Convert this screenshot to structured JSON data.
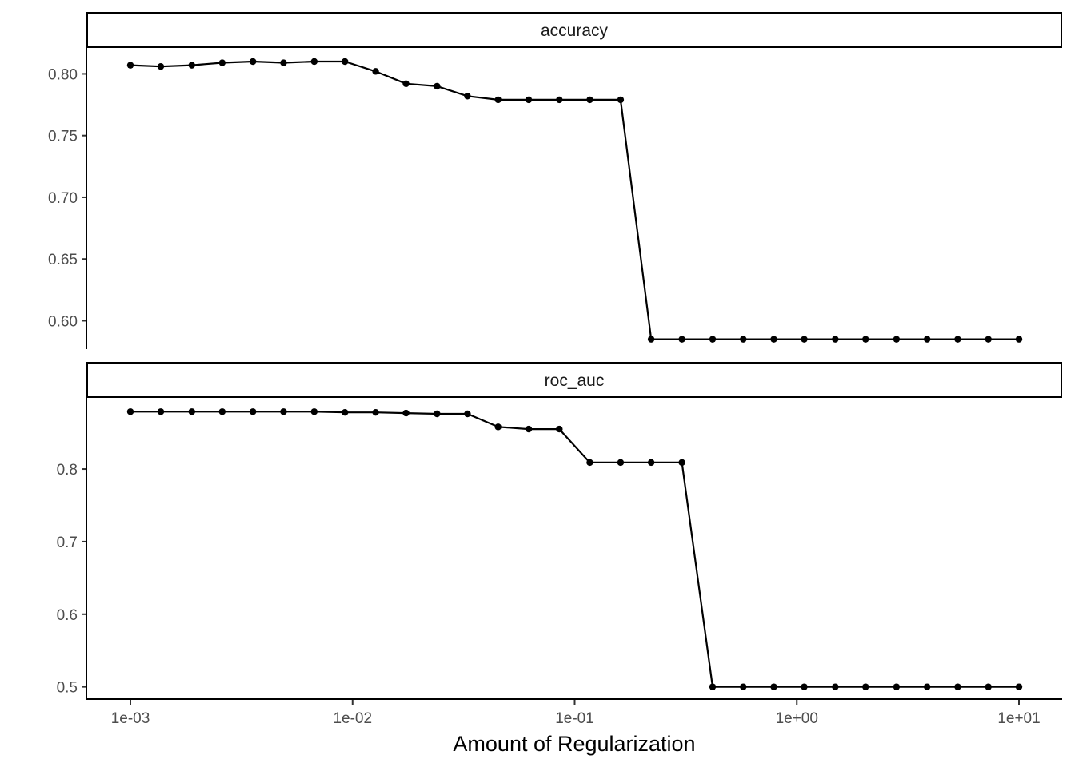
{
  "chart_data": {
    "type": "line",
    "xlabel": "Amount of Regularization",
    "xscale": "log10",
    "xlim": [
      0.001,
      10
    ],
    "x_ticks": [
      0.001,
      0.01,
      0.1,
      1,
      10
    ],
    "x_tick_labels": [
      "1e-03",
      "1e-02",
      "1e-01",
      "1e+00",
      "1e+01"
    ],
    "x": [
      0.001,
      0.00137,
      0.00189,
      0.00259,
      0.00356,
      0.00489,
      0.00672,
      0.00924,
      0.0127,
      0.0174,
      0.024,
      0.0329,
      0.0452,
      0.0621,
      0.0853,
      0.117,
      0.161,
      0.221,
      0.304,
      0.418,
      0.574,
      0.788,
      1.08,
      1.49,
      2.04,
      2.81,
      3.86,
      5.3,
      7.28,
      10.0
    ],
    "facets": [
      {
        "strip": "accuracy",
        "ylim": [
          0.577,
          0.821
        ],
        "y_ticks": [
          0.6,
          0.65,
          0.7,
          0.75,
          0.8
        ],
        "y_tick_labels": [
          "0.60",
          "0.65",
          "0.70",
          "0.75",
          "0.80"
        ],
        "values": [
          0.807,
          0.806,
          0.807,
          0.809,
          0.81,
          0.809,
          0.81,
          0.81,
          0.802,
          0.792,
          0.79,
          0.782,
          0.779,
          0.779,
          0.779,
          0.779,
          0.779,
          0.585,
          0.585,
          0.585,
          0.585,
          0.585,
          0.585,
          0.585,
          0.585,
          0.585,
          0.585,
          0.585,
          0.585,
          0.585
        ]
      },
      {
        "strip": "roc_auc",
        "ylim": [
          0.482,
          0.898
        ],
        "y_ticks": [
          0.5,
          0.6,
          0.7,
          0.8
        ],
        "y_tick_labels": [
          "0.5",
          "0.6",
          "0.7",
          "0.8"
        ],
        "values": [
          0.879,
          0.879,
          0.879,
          0.879,
          0.879,
          0.879,
          0.879,
          0.878,
          0.878,
          0.877,
          0.876,
          0.876,
          0.858,
          0.855,
          0.855,
          0.809,
          0.809,
          0.809,
          0.809,
          0.5,
          0.5,
          0.5,
          0.5,
          0.5,
          0.5,
          0.5,
          0.5,
          0.5,
          0.5,
          0.5
        ]
      }
    ]
  }
}
